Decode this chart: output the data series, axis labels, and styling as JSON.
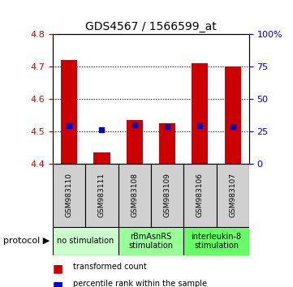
{
  "title": "GDS4567 / 1566599_at",
  "samples": [
    "GSM983110",
    "GSM983111",
    "GSM983108",
    "GSM983109",
    "GSM983106",
    "GSM983107"
  ],
  "red_values": [
    4.72,
    4.435,
    4.535,
    4.525,
    4.71,
    4.7
  ],
  "blue_values": [
    0.295,
    0.265,
    0.3,
    0.285,
    0.295,
    0.29
  ],
  "ylim_left": [
    4.4,
    4.8
  ],
  "ylim_right": [
    0,
    100
  ],
  "left_ticks": [
    4.4,
    4.5,
    4.6,
    4.7,
    4.8
  ],
  "right_ticks": [
    0,
    25,
    50,
    75,
    100
  ],
  "right_tick_labels": [
    "0",
    "25",
    "50",
    "75",
    "100%"
  ],
  "left_color": "#cc0000",
  "right_color": "#0000cc",
  "bar_bottom": 4.4,
  "blue_marker_size": 5,
  "protocol_groups": [
    {
      "label": "no stimulation",
      "start": 0,
      "end": 2,
      "color": "#ccffcc"
    },
    {
      "label": "rBmAsnRS\nstimulation",
      "start": 2,
      "end": 4,
      "color": "#99ff99"
    },
    {
      "label": "interleukin-8\nstimulation",
      "start": 4,
      "end": 6,
      "color": "#66ff66"
    }
  ],
  "legend_items": [
    {
      "color": "#cc0000",
      "label": "transformed count"
    },
    {
      "color": "#0000cc",
      "label": "percentile rank within the sample"
    }
  ]
}
